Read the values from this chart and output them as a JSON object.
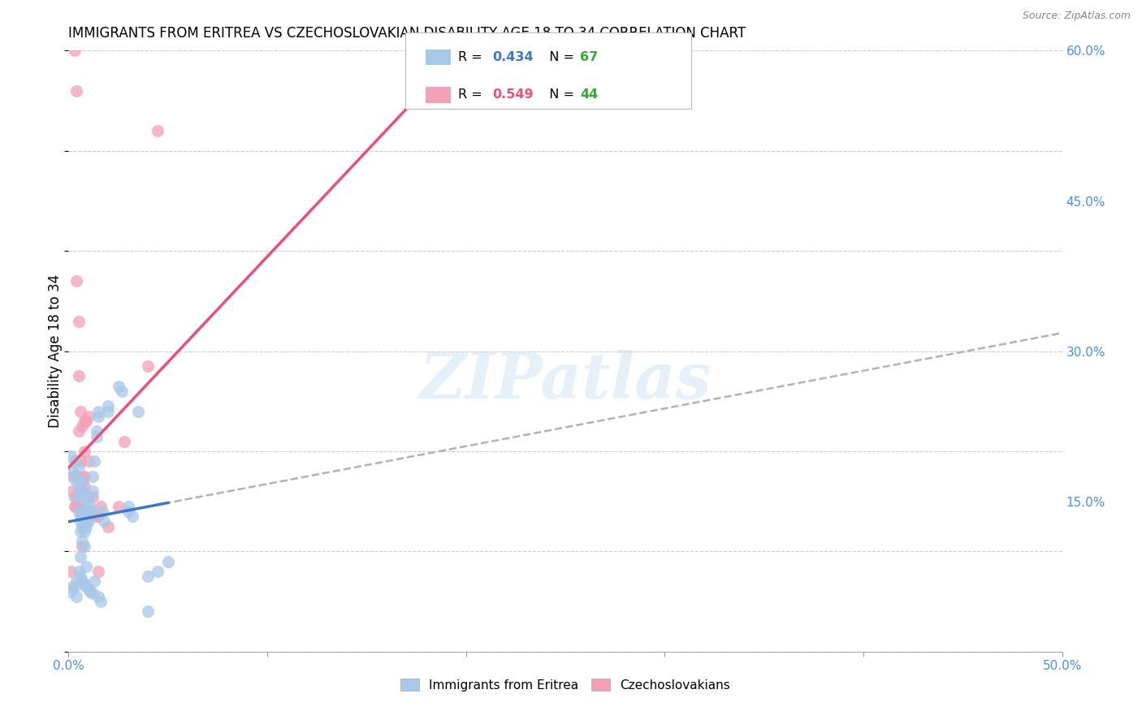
{
  "title": "IMMIGRANTS FROM ERITREA VS CZECHOSLOVAKIAN DISABILITY AGE 18 TO 34 CORRELATION CHART",
  "source": "Source: ZipAtlas.com",
  "ylabel": "Disability Age 18 to 34",
  "xlim": [
    0.0,
    0.5
  ],
  "ylim": [
    0.0,
    0.6
  ],
  "xticks": [
    0.0,
    0.1,
    0.2,
    0.3,
    0.4,
    0.5
  ],
  "xtick_labels": [
    "0.0%",
    "",
    "",
    "",
    "",
    "50.0%"
  ],
  "yticks_right": [
    0.0,
    0.15,
    0.3,
    0.45,
    0.6
  ],
  "ytick_labels_right": [
    "",
    "15.0%",
    "30.0%",
    "45.0%",
    "60.0%"
  ],
  "watermark": "ZIPatlas",
  "blue_color": "#a8c8e8",
  "pink_color": "#f4a0b8",
  "blue_line_color": "#3a78c9",
  "pink_line_color": "#e8507a",
  "gray_dash_color": "#aaaaaa",
  "blue_scatter": [
    [
      0.001,
      0.195
    ],
    [
      0.002,
      0.18
    ],
    [
      0.003,
      0.19
    ],
    [
      0.003,
      0.175
    ],
    [
      0.004,
      0.17
    ],
    [
      0.004,
      0.155
    ],
    [
      0.005,
      0.185
    ],
    [
      0.005,
      0.165
    ],
    [
      0.005,
      0.14
    ],
    [
      0.006,
      0.13
    ],
    [
      0.006,
      0.12
    ],
    [
      0.006,
      0.095
    ],
    [
      0.007,
      0.17
    ],
    [
      0.007,
      0.16
    ],
    [
      0.007,
      0.14
    ],
    [
      0.007,
      0.125
    ],
    [
      0.007,
      0.11
    ],
    [
      0.008,
      0.155
    ],
    [
      0.008,
      0.13
    ],
    [
      0.008,
      0.12
    ],
    [
      0.008,
      0.105
    ],
    [
      0.009,
      0.15
    ],
    [
      0.009,
      0.14
    ],
    [
      0.009,
      0.125
    ],
    [
      0.009,
      0.085
    ],
    [
      0.01,
      0.155
    ],
    [
      0.01,
      0.14
    ],
    [
      0.01,
      0.13
    ],
    [
      0.011,
      0.145
    ],
    [
      0.011,
      0.14
    ],
    [
      0.012,
      0.175
    ],
    [
      0.012,
      0.16
    ],
    [
      0.013,
      0.19
    ],
    [
      0.014,
      0.22
    ],
    [
      0.014,
      0.215
    ],
    [
      0.015,
      0.24
    ],
    [
      0.015,
      0.235
    ],
    [
      0.017,
      0.14
    ],
    [
      0.018,
      0.13
    ],
    [
      0.02,
      0.245
    ],
    [
      0.02,
      0.24
    ],
    [
      0.025,
      0.265
    ],
    [
      0.027,
      0.26
    ],
    [
      0.03,
      0.145
    ],
    [
      0.03,
      0.14
    ],
    [
      0.032,
      0.135
    ],
    [
      0.035,
      0.24
    ],
    [
      0.04,
      0.075
    ],
    [
      0.04,
      0.04
    ],
    [
      0.045,
      0.08
    ],
    [
      0.001,
      0.06
    ],
    [
      0.002,
      0.065
    ],
    [
      0.003,
      0.065
    ],
    [
      0.004,
      0.07
    ],
    [
      0.004,
      0.055
    ],
    [
      0.005,
      0.08
    ],
    [
      0.006,
      0.075
    ],
    [
      0.007,
      0.07
    ],
    [
      0.008,
      0.068
    ],
    [
      0.009,
      0.065
    ],
    [
      0.01,
      0.062
    ],
    [
      0.011,
      0.06
    ],
    [
      0.012,
      0.058
    ],
    [
      0.013,
      0.07
    ],
    [
      0.015,
      0.055
    ],
    [
      0.016,
      0.05
    ],
    [
      0.05,
      0.09
    ]
  ],
  "pink_scatter": [
    [
      0.001,
      0.08
    ],
    [
      0.002,
      0.175
    ],
    [
      0.002,
      0.16
    ],
    [
      0.003,
      0.155
    ],
    [
      0.003,
      0.145
    ],
    [
      0.004,
      0.37
    ],
    [
      0.004,
      0.175
    ],
    [
      0.004,
      0.145
    ],
    [
      0.005,
      0.33
    ],
    [
      0.005,
      0.275
    ],
    [
      0.005,
      0.22
    ],
    [
      0.005,
      0.145
    ],
    [
      0.006,
      0.24
    ],
    [
      0.006,
      0.19
    ],
    [
      0.006,
      0.16
    ],
    [
      0.006,
      0.135
    ],
    [
      0.007,
      0.225
    ],
    [
      0.007,
      0.175
    ],
    [
      0.007,
      0.16
    ],
    [
      0.007,
      0.105
    ],
    [
      0.008,
      0.23
    ],
    [
      0.008,
      0.2
    ],
    [
      0.008,
      0.175
    ],
    [
      0.008,
      0.165
    ],
    [
      0.008,
      0.155
    ],
    [
      0.009,
      0.23
    ],
    [
      0.009,
      0.14
    ],
    [
      0.009,
      0.13
    ],
    [
      0.01,
      0.235
    ],
    [
      0.01,
      0.19
    ],
    [
      0.01,
      0.155
    ],
    [
      0.011,
      0.14
    ],
    [
      0.012,
      0.155
    ],
    [
      0.014,
      0.135
    ],
    [
      0.015,
      0.135
    ],
    [
      0.016,
      0.145
    ],
    [
      0.02,
      0.125
    ],
    [
      0.025,
      0.145
    ],
    [
      0.028,
      0.21
    ],
    [
      0.04,
      0.285
    ],
    [
      0.003,
      0.6
    ],
    [
      0.004,
      0.56
    ],
    [
      0.015,
      0.08
    ],
    [
      0.045,
      0.52
    ]
  ],
  "blue_R": 0.434,
  "blue_N": 67,
  "pink_R": 0.549,
  "pink_N": 44,
  "legend_label_blue": "Immigrants from Eritrea",
  "legend_label_pink": "Czechoslovakians",
  "figsize": [
    14.06,
    8.92
  ],
  "dpi": 100
}
